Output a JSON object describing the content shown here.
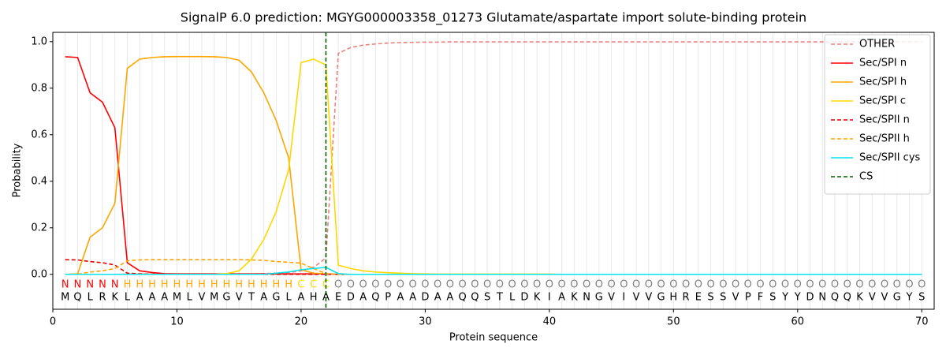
{
  "chart_data": {
    "type": "line",
    "title": "SignalP 6.0 prediction: MGYG000003358_01273 Glutamate/aspartate import solute-binding protein",
    "x_label": "Protein sequence",
    "y_label": "Probability",
    "xlim": [
      0,
      71
    ],
    "ylim": [
      -0.15,
      1.04
    ],
    "xticks": [
      0,
      10,
      20,
      30,
      40,
      50,
      60,
      70
    ],
    "yticks": [
      {
        "value": 0,
        "label": "0.0"
      },
      {
        "value": 0.2,
        "label": "0.2"
      },
      {
        "value": 0.4,
        "label": "0.4"
      },
      {
        "value": 0.6,
        "label": "0.6"
      },
      {
        "value": 0.8,
        "label": "0.8"
      },
      {
        "value": 1,
        "label": "1.0"
      }
    ],
    "legend": "upper right",
    "x": [
      1,
      2,
      3,
      4,
      5,
      6,
      7,
      8,
      9,
      10,
      11,
      12,
      13,
      14,
      15,
      16,
      17,
      18,
      19,
      20,
      21,
      22,
      23,
      24,
      25,
      26,
      27,
      28,
      29,
      30,
      31,
      32,
      33,
      34,
      35,
      36,
      37,
      38,
      39,
      40,
      41,
      42,
      43,
      44,
      45,
      46,
      47,
      48,
      49,
      50,
      51,
      52,
      53,
      54,
      55,
      56,
      57,
      58,
      59,
      60,
      61,
      62,
      63,
      64,
      65,
      66,
      67,
      68,
      69,
      70
    ],
    "residue_labels": [
      "N",
      "N",
      "N",
      "N",
      "N",
      "H",
      "H",
      "H",
      "H",
      "H",
      "H",
      "H",
      "H",
      "H",
      "H",
      "H",
      "H",
      "H",
      "H",
      "C",
      "C",
      "C",
      "O",
      "O",
      "O",
      "O",
      "O",
      "O",
      "O",
      "O",
      "O",
      "O",
      "O",
      "O",
      "O",
      "O",
      "O",
      "O",
      "O",
      "O",
      "O",
      "O",
      "O",
      "O",
      "O",
      "O",
      "O",
      "O",
      "O",
      "O",
      "O",
      "O",
      "O",
      "O",
      "O",
      "O",
      "O",
      "O",
      "O",
      "O",
      "O",
      "O",
      "O",
      "O",
      "O",
      "O",
      "O",
      "O",
      "O",
      "O"
    ],
    "residue_label_colors": {
      "N": "#ff0000",
      "H": "#ffa500",
      "C": "#ffd700",
      "O": "#808080"
    },
    "sequence": [
      "M",
      "Q",
      "L",
      "R",
      "K",
      "L",
      "A",
      "A",
      "A",
      "M",
      "L",
      "V",
      "M",
      "G",
      "V",
      "T",
      "A",
      "G",
      "L",
      "A",
      "H",
      "A",
      "E",
      "D",
      "A",
      "Q",
      "P",
      "A",
      "A",
      "D",
      "A",
      "A",
      "Q",
      "Q",
      "S",
      "T",
      "L",
      "D",
      "K",
      "I",
      "A",
      "K",
      "N",
      "G",
      "V",
      "I",
      "V",
      "V",
      "G",
      "H",
      "R",
      "E",
      "S",
      "S",
      "V",
      "P",
      "F",
      "S",
      "Y",
      "Y",
      "D",
      "N",
      "Q",
      "Q",
      "K",
      "V",
      "V",
      "G",
      "Y",
      "S"
    ],
    "series": [
      {
        "name": "OTHER",
        "color": "#f08080",
        "dash": true,
        "values": [
          0,
          0,
          0,
          0,
          0,
          0.001,
          0.001,
          0.001,
          0.001,
          0.001,
          0.001,
          0.001,
          0.001,
          0.001,
          0.001,
          0.002,
          0.003,
          0.005,
          0.008,
          0.015,
          0.03,
          0.07,
          0.95,
          0.975,
          0.985,
          0.99,
          0.994,
          0.996,
          0.997,
          0.998,
          0.998,
          0.999,
          0.999,
          0.999,
          0.999,
          0.999,
          0.999,
          0.999,
          0.999,
          0.999,
          0.999,
          0.999,
          0.999,
          0.999,
          0.999,
          0.999,
          0.999,
          0.999,
          0.999,
          0.999,
          0.999,
          0.999,
          0.999,
          0.999,
          0.999,
          0.999,
          0.999,
          0.999,
          0.999,
          0.999,
          0.999,
          0.999,
          0.999,
          0.999,
          0.999,
          0.999,
          0.999,
          0.999,
          0.999,
          0.999
        ]
      },
      {
        "name": "Sec/SPI n",
        "color": "#ff0000",
        "dash": false,
        "values": [
          0.935,
          0.932,
          0.78,
          0.74,
          0.63,
          0.05,
          0.015,
          0.008,
          0.003,
          0.002,
          0.002,
          0.002,
          0.002,
          0.002,
          0.002,
          0.002,
          0.002,
          0.002,
          0.002,
          0.002,
          0.002,
          0.002,
          0,
          0,
          0,
          0,
          0,
          0,
          0,
          0,
          0,
          0,
          0,
          0,
          0,
          0,
          0,
          0,
          0,
          0,
          0,
          0,
          0,
          0,
          0,
          0,
          0,
          0,
          0,
          0,
          0,
          0,
          0,
          0,
          0,
          0,
          0,
          0,
          0,
          0,
          0,
          0,
          0,
          0,
          0,
          0,
          0,
          0,
          0,
          0
        ]
      },
      {
        "name": "Sec/SPI h",
        "color": "#ffa500",
        "dash": false,
        "values": [
          0,
          0.002,
          0.16,
          0.2,
          0.305,
          0.885,
          0.925,
          0.932,
          0.935,
          0.936,
          0.936,
          0.936,
          0.935,
          0.932,
          0.92,
          0.87,
          0.78,
          0.66,
          0.5,
          0.02,
          0.005,
          0.002,
          0,
          0,
          0,
          0,
          0,
          0,
          0,
          0,
          0,
          0,
          0,
          0,
          0,
          0,
          0,
          0,
          0,
          0,
          0,
          0,
          0,
          0,
          0,
          0,
          0,
          0,
          0,
          0,
          0,
          0,
          0,
          0,
          0,
          0,
          0,
          0,
          0,
          0,
          0,
          0,
          0,
          0,
          0,
          0,
          0,
          0,
          0,
          0
        ]
      },
      {
        "name": "Sec/SPI c",
        "color": "#ffd700",
        "dash": false,
        "values": [
          0,
          0,
          0,
          0,
          0,
          0,
          0,
          0,
          0,
          0,
          0,
          0,
          0,
          0.003,
          0.015,
          0.065,
          0.15,
          0.27,
          0.45,
          0.91,
          0.925,
          0.9,
          0.04,
          0.025,
          0.015,
          0.01,
          0.007,
          0.005,
          0.003,
          0.002,
          0.001,
          0.001,
          0.001,
          0.001,
          0.001,
          0.001,
          0.001,
          0.001,
          0.001,
          0.001,
          0,
          0,
          0,
          0,
          0,
          0,
          0,
          0,
          0,
          0,
          0,
          0,
          0,
          0,
          0,
          0,
          0,
          0,
          0,
          0,
          0,
          0,
          0,
          0,
          0,
          0,
          0,
          0,
          0,
          0
        ]
      },
      {
        "name": "Sec/SPII n",
        "color": "#e00000",
        "dash": true,
        "values": [
          0.063,
          0.062,
          0.055,
          0.05,
          0.04,
          0.005,
          0.002,
          0.001,
          0.001,
          0.001,
          0,
          0,
          0,
          0,
          0,
          0,
          0,
          0,
          0,
          0,
          0,
          0,
          0,
          0,
          0,
          0,
          0,
          0,
          0,
          0,
          0,
          0,
          0,
          0,
          0,
          0,
          0,
          0,
          0,
          0,
          0,
          0,
          0,
          0,
          0,
          0,
          0,
          0,
          0,
          0,
          0,
          0,
          0,
          0,
          0,
          0,
          0,
          0,
          0,
          0,
          0,
          0,
          0,
          0,
          0,
          0,
          0,
          0,
          0,
          0
        ]
      },
      {
        "name": "Sec/SPII h",
        "color": "#ffa500",
        "dash": true,
        "values": [
          0,
          0,
          0.01,
          0.015,
          0.025,
          0.058,
          0.062,
          0.063,
          0.063,
          0.063,
          0.063,
          0.063,
          0.063,
          0.063,
          0.063,
          0.062,
          0.06,
          0.055,
          0.052,
          0.048,
          0.025,
          0.003,
          0,
          0,
          0,
          0,
          0,
          0,
          0,
          0,
          0,
          0,
          0,
          0,
          0,
          0,
          0,
          0,
          0,
          0,
          0,
          0,
          0,
          0,
          0,
          0,
          0,
          0,
          0,
          0,
          0,
          0,
          0,
          0,
          0,
          0,
          0,
          0,
          0,
          0,
          0,
          0,
          0,
          0,
          0,
          0,
          0,
          0,
          0,
          0
        ]
      },
      {
        "name": "Sec/SPII cys",
        "color": "#00e5ee",
        "dash": false,
        "values": [
          0,
          0,
          0,
          0,
          0,
          0,
          0,
          0,
          0,
          0,
          0,
          0,
          0,
          0,
          0,
          0,
          0,
          0.005,
          0.01,
          0.02,
          0.025,
          0.03,
          0.003,
          0,
          0,
          0,
          0,
          0,
          0,
          0,
          0,
          0,
          0,
          0,
          0,
          0,
          0,
          0,
          0,
          0,
          0,
          0,
          0,
          0,
          0,
          0,
          0,
          0,
          0,
          0,
          0,
          0,
          0,
          0,
          0,
          0,
          0,
          0,
          0,
          0,
          0,
          0,
          0,
          0,
          0,
          0,
          0,
          0,
          0,
          0
        ]
      }
    ],
    "cs": {
      "name": "CS",
      "color": "#006400",
      "x": 22
    }
  }
}
